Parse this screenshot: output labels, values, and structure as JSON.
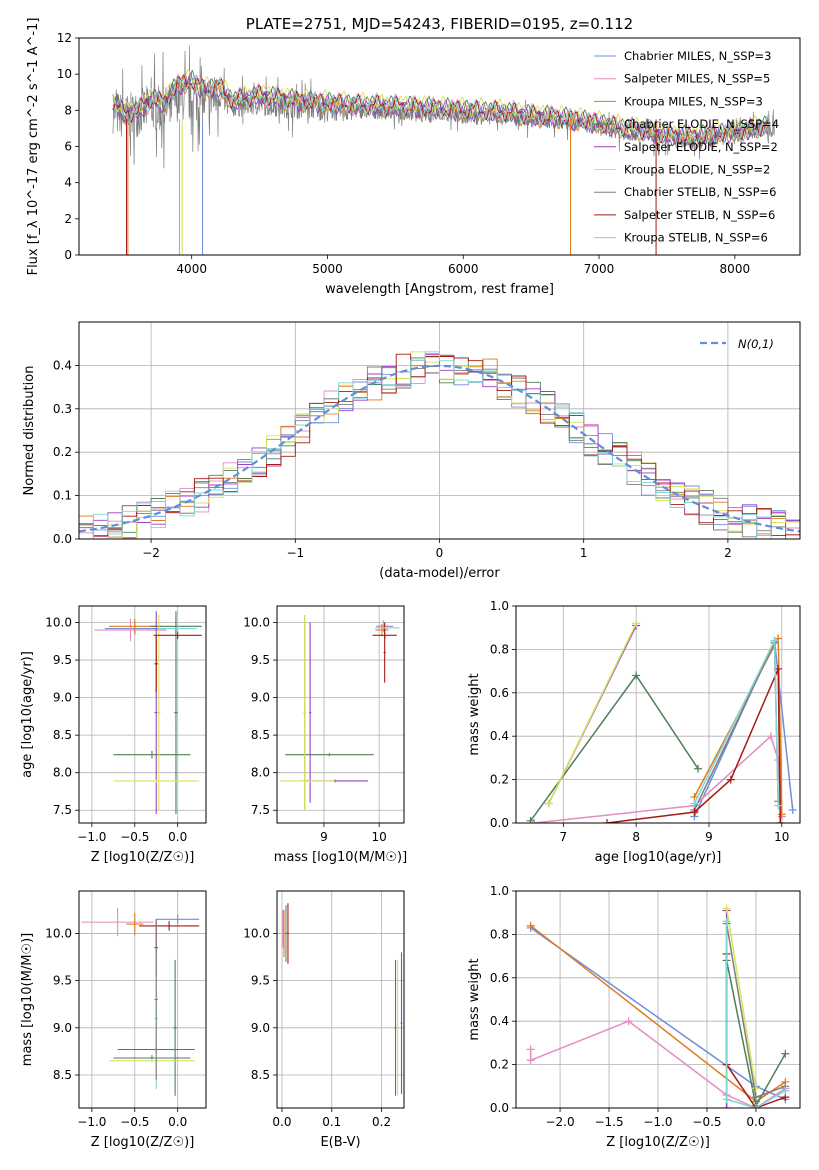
{
  "colors": {
    "chabrier_miles": "#6f8fdc",
    "salpeter_miles": "#e48bc0",
    "kroupa_miles": "#e07b1f",
    "chabrier_elodie": "#4f7f59",
    "salpeter_elodie": "#9b3fc7",
    "kroupa_elodie": "#d7e35a",
    "chabrier_stelib": "#7f7f7f",
    "salpeter_stelib": "#a51b12",
    "kroupa_stelib": "#7fd6d6",
    "normal_curve": "#5f8fdc"
  },
  "legend_entries": [
    "Chabrier MILES, N_SSP=3",
    "Salpeter MILES, N_SSP=5",
    "Kroupa MILES, N_SSP=3",
    "Chabrier ELODIE, N_SSP=4",
    "Salpeter ELODIE, N_SSP=2",
    "Kroupa ELODIE, N_SSP=2",
    "Chabrier STELIB, N_SSP=6",
    "Salpeter STELIB, N_SSP=6",
    "Kroupa STELIB, N_SSP=6"
  ],
  "legend_keys": [
    "chabrier_miles",
    "salpeter_miles",
    "kroupa_miles",
    "chabrier_elodie",
    "salpeter_elodie",
    "kroupa_elodie",
    "chabrier_stelib",
    "salpeter_stelib",
    "kroupa_stelib"
  ],
  "chart_data": [
    {
      "id": "spectrum",
      "type": "line",
      "title": "PLATE=2751, MJD=54243, FIBERID=0195, z=0.112",
      "xlabel": "wavelength [Angstrom, rest frame]",
      "ylabel": "Flux [f_λ 10^-17 erg cm^-2 s^-1 A^-1]",
      "xlim": [
        3170,
        8480
      ],
      "ylim": [
        0,
        12
      ],
      "xticks": [
        4000,
        5000,
        6000,
        7000,
        8000
      ],
      "yticks": [
        0,
        2,
        4,
        6,
        8,
        10,
        12
      ],
      "grid": false,
      "legend": "top-right",
      "data_x": [
        3420,
        3500,
        3600,
        3700,
        3800,
        3900,
        4000,
        4100,
        4200,
        4300,
        4500,
        4800,
        5000,
        5200,
        5500,
        5800,
        6000,
        6300,
        6500,
        6700,
        6900,
        7100,
        7300,
        7500,
        7700,
        7900,
        8000,
        8100,
        8200,
        8300
      ],
      "data_y": [
        8.0,
        7.6,
        7.8,
        8.2,
        8.0,
        8.7,
        8.6,
        8.5,
        8.8,
        8.3,
        8.4,
        8.2,
        8.1,
        8.0,
        7.9,
        7.8,
        7.7,
        7.6,
        7.5,
        7.4,
        7.2,
        6.9,
        6.7,
        6.4,
        6.3,
        6.6,
        6.7,
        6.8,
        7.0,
        7.0
      ],
      "model_x": [
        3420,
        3500,
        3600,
        3700,
        3800,
        3900,
        4000,
        4100,
        4200,
        4300,
        4500,
        4800,
        5000,
        5200,
        5500,
        5800,
        6000,
        6300,
        6500,
        6700,
        6900,
        7100,
        7300,
        7500,
        7700,
        7900,
        8000,
        8100,
        8200,
        8250
      ],
      "model_y": [
        8.5,
        7.8,
        7.9,
        8.6,
        8.4,
        9.4,
        9.6,
        9.1,
        9.3,
        8.5,
        8.8,
        8.5,
        8.4,
        8.3,
        8.2,
        8.1,
        8.0,
        7.9,
        7.7,
        7.6,
        7.4,
        7.1,
        6.9,
        6.6,
        6.5,
        6.7,
        6.8,
        6.9,
        7.1,
        7.2
      ]
    },
    {
      "id": "residuals",
      "type": "line",
      "xlabel": "(data-model)/error",
      "ylabel": "Normed distribution",
      "xlim": [
        -2.5,
        2.5
      ],
      "ylim": [
        0,
        0.5
      ],
      "xticks": [
        -2,
        -1,
        0,
        1,
        2
      ],
      "yticks": [
        0.0,
        0.1,
        0.2,
        0.3,
        0.4
      ],
      "grid": true,
      "legend": "top-right",
      "legend_label": "N(0,1)",
      "bin_width": 0.1
    },
    {
      "id": "age_vs_Z",
      "type": "scatter",
      "xlabel": "Z [log10(Z/Z☉)]",
      "ylabel": "age  [log10(age/yr)]",
      "xlim": [
        -1.15,
        0.33
      ],
      "ylim": [
        7.33,
        10.22
      ],
      "xticks": [
        -1.0,
        -0.5,
        0.0
      ],
      "yticks": [
        7.5,
        8.0,
        8.5,
        9.0,
        9.5,
        10.0
      ],
      "grid": true,
      "points": [
        {
          "s": "chabrier_miles",
          "x": -0.5,
          "y": 9.92,
          "xe": 0.35,
          "ye": 0.08
        },
        {
          "s": "salpeter_miles",
          "x": -0.55,
          "y": 9.9,
          "xe": 0.42,
          "ye": 0.15
        },
        {
          "s": "kroupa_miles",
          "x": -0.5,
          "y": 9.95,
          "xe": 0.3,
          "ye": 0.1
        },
        {
          "s": "chabrier_elodie",
          "x": -0.02,
          "y": 9.95,
          "xe": 0.3,
          "ye": 0.12
        },
        {
          "s": "chabrier_elodie",
          "x": -0.3,
          "y": 8.24,
          "xe": 0.45,
          "ye": 0.05
        },
        {
          "s": "chabrier_elodie",
          "x": -0.02,
          "y": 8.8,
          "xe": 0.02,
          "ye": 1.35
        },
        {
          "s": "salpeter_elodie",
          "x": -0.25,
          "y": 8.8,
          "xe": 0.02,
          "ye": 1.35
        },
        {
          "s": "kroupa_elodie",
          "x": -0.25,
          "y": 7.89,
          "xe": 0.5,
          "ye": 0.02
        },
        {
          "s": "kroupa_elodie",
          "x": -0.22,
          "y": 8.8,
          "xe": 0.02,
          "ye": 1.3
        },
        {
          "s": "salpeter_stelib",
          "x": 0.0,
          "y": 9.83,
          "xe": 0.28,
          "ye": 0.05
        },
        {
          "s": "salpeter_stelib",
          "x": -0.25,
          "y": 9.45,
          "xe": 0.02,
          "ye": 0.38
        },
        {
          "s": "kroupa_stelib",
          "x": 0.0,
          "y": 9.92,
          "xe": 0.22,
          "ye": 0.05
        }
      ]
    },
    {
      "id": "age_vs_mass",
      "type": "scatter",
      "xlabel": "mass [log10(M/M☉)]",
      "xlim": [
        8.15,
        10.45
      ],
      "ylim": [
        7.33,
        10.22
      ],
      "xticks": [
        9,
        10
      ],
      "yticks": [
        7.5,
        8.0,
        8.5,
        9.0,
        9.5,
        10.0
      ],
      "grid": true,
      "points": [
        {
          "s": "chabrier_miles",
          "x": 10.1,
          "y": 9.95,
          "xe": 0.15,
          "ye": 0.05
        },
        {
          "s": "salpeter_miles",
          "x": 10.08,
          "y": 9.95,
          "xe": 0.1,
          "ye": 0.08
        },
        {
          "s": "kroupa_miles",
          "x": 10.05,
          "y": 9.9,
          "xe": 0.12,
          "ye": 0.08
        },
        {
          "s": "chabrier_elodie",
          "x": 9.1,
          "y": 8.24,
          "xe": 0.8,
          "ye": 0.02
        },
        {
          "s": "chabrier_elodie",
          "x": 8.65,
          "y": 8.8,
          "xe": 0.02,
          "ye": 1.3
        },
        {
          "s": "salpeter_elodie",
          "x": 8.75,
          "y": 8.8,
          "xe": 0.02,
          "ye": 1.2
        },
        {
          "s": "salpeter_elodie",
          "x": 9.2,
          "y": 7.89,
          "xe": 0.6,
          "ye": 0.02
        },
        {
          "s": "kroupa_elodie",
          "x": 8.65,
          "y": 8.8,
          "xe": 0.02,
          "ye": 1.3
        },
        {
          "s": "kroupa_elodie",
          "x": 8.7,
          "y": 7.89,
          "xe": 0.5,
          "ye": 0.02
        },
        {
          "s": "salpeter_stelib",
          "x": 10.1,
          "y": 9.83,
          "xe": 0.22,
          "ye": 0.05
        },
        {
          "s": "salpeter_stelib",
          "x": 10.1,
          "y": 9.6,
          "xe": 0.02,
          "ye": 0.4
        },
        {
          "s": "kroupa_stelib",
          "x": 10.15,
          "y": 9.93,
          "xe": 0.22,
          "ye": 0.04
        }
      ]
    },
    {
      "id": "mass_weight_vs_age",
      "type": "line",
      "xlabel": "age  [log10(age/yr)]",
      "ylabel": "mass weight",
      "xlim": [
        6.35,
        10.25
      ],
      "ylim": [
        0,
        1
      ],
      "xticks": [
        7,
        8,
        9,
        10
      ],
      "yticks": [
        0.0,
        0.2,
        0.4,
        0.6,
        0.8,
        1.0
      ],
      "grid": true,
      "series": [
        {
          "s": "chabrier_miles",
          "x": [
            8.8,
            9.9,
            10.15
          ],
          "y": [
            0.03,
            0.84,
            0.06
          ]
        },
        {
          "s": "salpeter_miles",
          "x": [
            6.6,
            8.8,
            9.85,
            9.95,
            10.0
          ],
          "y": [
            0.0,
            0.08,
            0.4,
            0.29,
            0.03
          ]
        },
        {
          "s": "kroupa_miles",
          "x": [
            8.8,
            9.95,
            10.0
          ],
          "y": [
            0.12,
            0.85,
            0.04
          ]
        },
        {
          "s": "chabrier_elodie",
          "x": [
            6.55,
            8.0,
            8.85
          ],
          "y": [
            0.01,
            0.68,
            0.25
          ]
        },
        {
          "s": "salpeter_elodie",
          "x": [
            6.8,
            8.0
          ],
          "y": [
            0.09,
            0.91
          ]
        },
        {
          "s": "kroupa_elodie",
          "x": [
            6.8,
            8.0
          ],
          "y": [
            0.09,
            0.92
          ]
        },
        {
          "s": "chabrier_stelib",
          "x": [
            8.8,
            9.9,
            9.95
          ],
          "y": [
            0.06,
            0.83,
            0.1
          ]
        },
        {
          "s": "salpeter_stelib",
          "x": [
            7.6,
            8.8,
            9.3,
            9.95,
            9.98
          ],
          "y": [
            0.0,
            0.05,
            0.2,
            0.71,
            0.0
          ]
        },
        {
          "s": "kroupa_stelib",
          "x": [
            8.8,
            9.9,
            9.95
          ],
          "y": [
            0.09,
            0.84,
            0.08
          ]
        }
      ]
    },
    {
      "id": "mass_vs_Z",
      "type": "scatter",
      "xlabel": "Z [log10(Z/Z☉)]",
      "ylabel": "mass [log10(M/M☉)]",
      "xlim": [
        -1.15,
        0.33
      ],
      "ylim": [
        8.15,
        10.45
      ],
      "xticks": [
        -1.0,
        -0.5,
        0.0
      ],
      "yticks": [
        8.5,
        9.0,
        9.5,
        10.0
      ],
      "grid": true,
      "points": [
        {
          "s": "salpeter_miles",
          "x": -0.7,
          "y": 10.12,
          "xe": 0.42,
          "ye": 0.15
        },
        {
          "s": "kroupa_miles",
          "x": -0.5,
          "y": 10.1,
          "xe": 0.1,
          "ye": 0.12
        },
        {
          "s": "chabrier_miles",
          "x": 0.0,
          "y": 10.15,
          "xe": 0.25,
          "ye": 0.05
        },
        {
          "s": "chabrier_elodie",
          "x": -0.3,
          "y": 8.68,
          "xe": 0.45,
          "ye": 0.03
        },
        {
          "s": "chabrier_elodie",
          "x": -0.03,
          "y": 9.0,
          "xe": 0.02,
          "ye": 0.72
        },
        {
          "s": "salpeter_elodie",
          "x": -0.25,
          "y": 8.77,
          "xe": 0.45,
          "ye": 0.03
        },
        {
          "s": "kroupa_elodie",
          "x": -0.3,
          "y": 8.65,
          "xe": 0.5,
          "ye": 0.02
        },
        {
          "s": "salpeter_stelib",
          "x": -0.1,
          "y": 10.08,
          "xe": 0.35,
          "ye": 0.05
        },
        {
          "s": "salpeter_stelib",
          "x": -0.25,
          "y": 9.85,
          "xe": 0.02,
          "ye": 0.3
        },
        {
          "s": "kroupa_stelib",
          "x": -0.25,
          "y": 9.1,
          "xe": 0.02,
          "ye": 0.75
        },
        {
          "s": "chabrier_stelib",
          "x": -0.25,
          "y": 9.3,
          "xe": 0.02,
          "ye": 0.85
        }
      ]
    },
    {
      "id": "mass_vs_ebv",
      "type": "scatter",
      "xlabel": "E(B-V)",
      "xlim": [
        -0.01,
        0.245
      ],
      "ylim": [
        8.15,
        10.45
      ],
      "xticks": [
        0.0,
        0.1,
        0.2
      ],
      "yticks": [
        8.5,
        9.0,
        9.5,
        10.0
      ],
      "grid": true,
      "points": [
        {
          "s": "salpeter_miles",
          "x": 0.002,
          "y": 10.05,
          "xe": 0.002,
          "ye": 0.2
        },
        {
          "s": "kroupa_miles",
          "x": 0.004,
          "y": 10.0,
          "xe": 0.002,
          "ye": 0.25
        },
        {
          "s": "chabrier_stelib",
          "x": 0.008,
          "y": 10.0,
          "xe": 0.002,
          "ye": 0.3
        },
        {
          "s": "salpeter_stelib",
          "x": 0.012,
          "y": 10.0,
          "xe": 0.002,
          "ye": 0.32
        },
        {
          "s": "chabrier_elodie",
          "x": 0.228,
          "y": 9.0,
          "xe": 0.002,
          "ye": 0.72
        },
        {
          "s": "kroupa_elodie",
          "x": 0.232,
          "y": 9.0,
          "xe": 0.002,
          "ye": 0.72
        },
        {
          "s": "salpeter_elodie",
          "x": 0.24,
          "y": 9.05,
          "xe": 0.002,
          "ye": 0.75
        }
      ]
    },
    {
      "id": "mass_weight_vs_Z",
      "type": "line",
      "xlabel": "Z [log10(Z/Z☉)]",
      "ylabel": "mass weight",
      "xlim": [
        -2.45,
        0.45
      ],
      "ylim": [
        0,
        1
      ],
      "xticks": [
        -2.0,
        -1.5,
        -1.0,
        -0.5,
        0.0
      ],
      "yticks": [
        0.0,
        0.2,
        0.4,
        0.6,
        0.8,
        1.0
      ],
      "grid": true,
      "series": [
        {
          "s": "chabrier_miles",
          "x": [
            -2.3,
            0.0,
            0.3
          ],
          "y": [
            0.83,
            0.1,
            0.04
          ]
        },
        {
          "s": "salpeter_miles",
          "x": [
            -2.3,
            -2.3,
            -1.3,
            -0.3,
            0.0,
            0.3
          ],
          "y": [
            0.27,
            0.22,
            0.4,
            0.06,
            0.0,
            0.09
          ]
        },
        {
          "s": "kroupa_miles",
          "x": [
            -2.3,
            0.0,
            0.3
          ],
          "y": [
            0.84,
            0.03,
            0.12
          ]
        },
        {
          "s": "chabrier_elodie",
          "x": [
            -0.3,
            0.0,
            0.3
          ],
          "y": [
            0.68,
            0.01,
            0.25
          ]
        },
        {
          "s": "salpeter_elodie",
          "x": [
            -0.3,
            -0.3
          ],
          "y": [
            0.91,
            0.0
          ]
        },
        {
          "s": "kroupa_elodie",
          "x": [
            -0.3,
            0.0
          ],
          "y": [
            0.92,
            0.09
          ]
        },
        {
          "s": "chabrier_stelib",
          "x": [
            -0.3,
            0.0,
            0.3
          ],
          "y": [
            0.85,
            0.05,
            0.1
          ]
        },
        {
          "s": "salpeter_stelib",
          "x": [
            -0.3,
            -0.3,
            0.0,
            0.3
          ],
          "y": [
            0.71,
            0.2,
            0.0,
            0.05
          ]
        },
        {
          "s": "kroupa_stelib",
          "x": [
            -0.3,
            -0.3,
            0.0,
            0.3
          ],
          "y": [
            0.86,
            0.04,
            0.0,
            0.08
          ]
        }
      ]
    }
  ]
}
